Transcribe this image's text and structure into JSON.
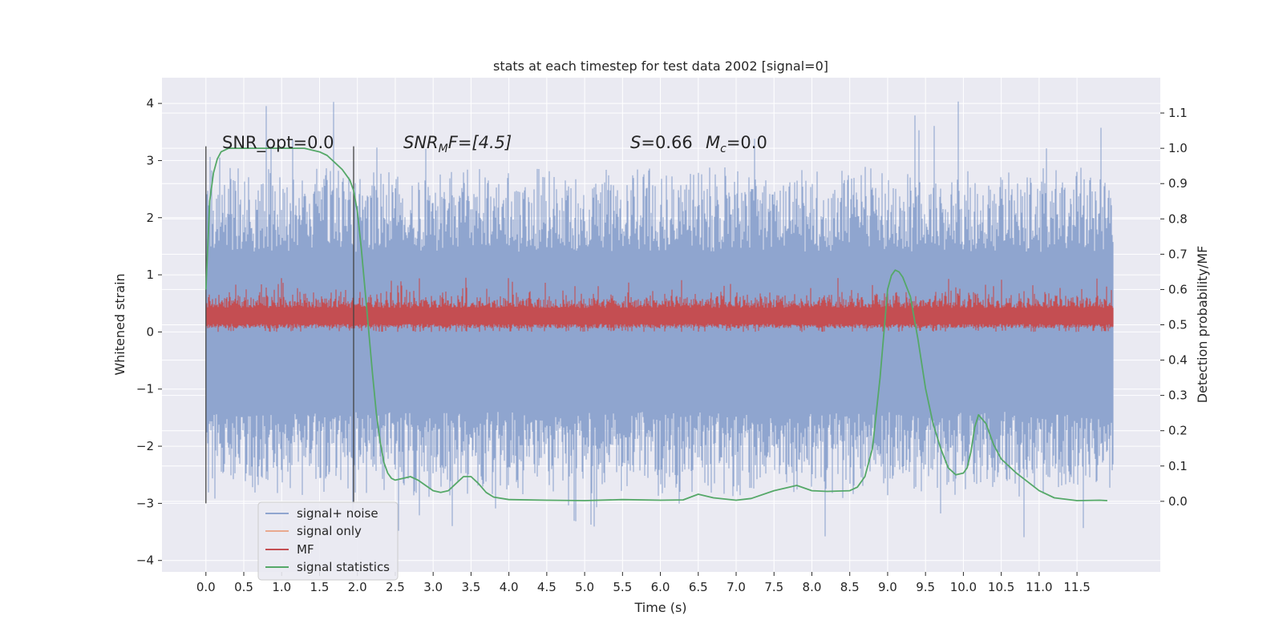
{
  "chart_data": {
    "type": "line",
    "title": "stats at each timestep for test data 2002 [signal=0]",
    "xlabel": "Time (s)",
    "ylabel": "Whitened strain",
    "ylabel_right": "Detection probability/MF",
    "xlim": [
      -0.58,
      12.6
    ],
    "ylim": [
      -4.2,
      4.45
    ],
    "ylim_right": [
      -0.2,
      1.2
    ],
    "x_ticks": [
      0.0,
      0.5,
      1.0,
      1.5,
      2.0,
      2.5,
      3.0,
      3.5,
      4.0,
      4.5,
      5.0,
      5.5,
      6.0,
      6.5,
      7.0,
      7.5,
      8.0,
      8.5,
      9.0,
      9.5,
      10.0,
      10.5,
      11.0,
      11.5
    ],
    "x_tick_labels": [
      "0.0",
      "0.5",
      "1.0",
      "1.5",
      "2.0",
      "2.5",
      "3.0",
      "3.5",
      "4.0",
      "4.5",
      "5.0",
      "5.5",
      "6.0",
      "6.5",
      "7.0",
      "7.5",
      "8.0",
      "8.5",
      "9.0",
      "9.5",
      "10.0",
      "10.5",
      "11.0",
      "11.5"
    ],
    "y_ticks": [
      -4,
      -3,
      -2,
      -1,
      0,
      1,
      2,
      3,
      4
    ],
    "y_tick_labels": [
      "−4",
      "−3",
      "−2",
      "−1",
      "0",
      "1",
      "2",
      "3",
      "4"
    ],
    "y_right_ticks": [
      0.0,
      0.1,
      0.2,
      0.3,
      0.4,
      0.5,
      0.6,
      0.7,
      0.8,
      0.9,
      1.0,
      1.1
    ],
    "y_right_tick_labels": [
      "0.0",
      "0.1",
      "0.2",
      "0.3",
      "0.4",
      "0.5",
      "0.6",
      "0.7",
      "0.8",
      "0.9",
      "1.0",
      "1.1"
    ],
    "grid": true,
    "legend_position": "lower-left",
    "annotations": {
      "snr_opt": "SNR_opt=0.0",
      "snr_mf_sym": "SNR",
      "snr_mf_sub": "M",
      "snr_mf_rest": "F=[4.5]",
      "s_sym": "S",
      "s_rest": "=0.66",
      "mc_sym": "M",
      "mc_sub": "c",
      "mc_rest": "=0.0"
    },
    "vertical_markers": [
      0.0,
      1.95
    ],
    "marker_ylim": [
      -3.0,
      3.25
    ],
    "series": [
      {
        "name": "signal+ noise",
        "color": "#8fa5cf",
        "axis": "left",
        "time_range": [
          0.0,
          11.98
        ],
        "envelope": {
          "p99_max": 2.3,
          "p99_min": -2.3,
          "peak_max": 4.1,
          "peak_min": -3.85
        }
      },
      {
        "name": "signal only",
        "color": "#e9a98f",
        "axis": "left"
      },
      {
        "name": "MF",
        "color": "#c44e52",
        "axis": "left",
        "time_range": [
          0.0,
          11.98
        ],
        "envelope": {
          "band_min": 0.0,
          "band_max": 0.65,
          "peak_max": 1.0
        }
      },
      {
        "name": "signal statistics",
        "color": "#55a868",
        "axis": "right",
        "x": [
          0.0,
          0.05,
          0.1,
          0.15,
          0.2,
          0.3,
          0.5,
          0.8,
          1.0,
          1.3,
          1.5,
          1.6,
          1.7,
          1.8,
          1.9,
          1.95,
          2.0,
          2.05,
          2.1,
          2.15,
          2.2,
          2.25,
          2.3,
          2.35,
          2.4,
          2.45,
          2.5,
          2.6,
          2.7,
          2.8,
          2.9,
          3.0,
          3.1,
          3.2,
          3.3,
          3.4,
          3.5,
          3.6,
          3.7,
          3.8,
          4.0,
          4.5,
          5.0,
          5.5,
          6.0,
          6.3,
          6.5,
          6.7,
          7.0,
          7.2,
          7.5,
          7.7,
          7.8,
          8.0,
          8.2,
          8.5,
          8.6,
          8.7,
          8.8,
          8.9,
          9.0,
          9.05,
          9.1,
          9.15,
          9.2,
          9.3,
          9.4,
          9.5,
          9.6,
          9.7,
          9.8,
          9.9,
          10.0,
          10.05,
          10.1,
          10.15,
          10.2,
          10.3,
          10.4,
          10.5,
          10.7,
          11.0,
          11.2,
          11.5,
          11.8,
          11.9
        ],
        "values": [
          0.6,
          0.85,
          0.93,
          0.97,
          0.99,
          1.0,
          1.0,
          1.0,
          1.0,
          1.0,
          0.99,
          0.98,
          0.96,
          0.94,
          0.91,
          0.88,
          0.82,
          0.72,
          0.6,
          0.48,
          0.36,
          0.25,
          0.17,
          0.11,
          0.08,
          0.065,
          0.06,
          0.065,
          0.07,
          0.06,
          0.045,
          0.03,
          0.025,
          0.03,
          0.05,
          0.07,
          0.07,
          0.05,
          0.025,
          0.012,
          0.005,
          0.003,
          0.002,
          0.005,
          0.003,
          0.004,
          0.02,
          0.01,
          0.003,
          0.008,
          0.03,
          0.04,
          0.045,
          0.03,
          0.028,
          0.03,
          0.04,
          0.07,
          0.15,
          0.35,
          0.6,
          0.64,
          0.655,
          0.65,
          0.635,
          0.58,
          0.46,
          0.32,
          0.22,
          0.15,
          0.095,
          0.075,
          0.08,
          0.095,
          0.14,
          0.21,
          0.245,
          0.22,
          0.16,
          0.12,
          0.08,
          0.03,
          0.01,
          0.002,
          0.003,
          0.002
        ]
      }
    ],
    "legend": [
      "signal+ noise",
      "signal only",
      "MF",
      "signal statistics"
    ]
  }
}
